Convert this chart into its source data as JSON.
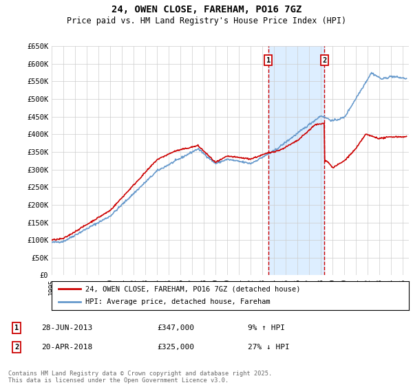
{
  "title": "24, OWEN CLOSE, FAREHAM, PO16 7GZ",
  "subtitle": "Price paid vs. HM Land Registry's House Price Index (HPI)",
  "ylabel_ticks": [
    "£0",
    "£50K",
    "£100K",
    "£150K",
    "£200K",
    "£250K",
    "£300K",
    "£350K",
    "£400K",
    "£450K",
    "£500K",
    "£550K",
    "£600K",
    "£650K"
  ],
  "ylim": [
    0,
    650000
  ],
  "ytick_vals": [
    0,
    50000,
    100000,
    150000,
    200000,
    250000,
    300000,
    350000,
    400000,
    450000,
    500000,
    550000,
    600000,
    650000
  ],
  "xlim_start": 1995.0,
  "xlim_end": 2025.5,
  "sale1_date": 2013.49,
  "sale1_price": 347000,
  "sale1_label": "1",
  "sale2_date": 2018.3,
  "sale2_price": 325000,
  "sale2_label": "2",
  "hpi_color": "#6699cc",
  "price_color": "#cc0000",
  "dashed_color": "#cc0000",
  "shade_color": "#ddeeff",
  "legend1": "24, OWEN CLOSE, FAREHAM, PO16 7GZ (detached house)",
  "legend2": "HPI: Average price, detached house, Fareham",
  "footer": "Contains HM Land Registry data © Crown copyright and database right 2025.\nThis data is licensed under the Open Government Licence v3.0.",
  "background_color": "#ffffff",
  "grid_color": "#cccccc",
  "sale1_date_str": "28-JUN-2013",
  "sale1_price_str": "£347,000",
  "sale1_pct_str": "9% ↑ HPI",
  "sale2_date_str": "20-APR-2018",
  "sale2_price_str": "£325,000",
  "sale2_pct_str": "27% ↓ HPI"
}
